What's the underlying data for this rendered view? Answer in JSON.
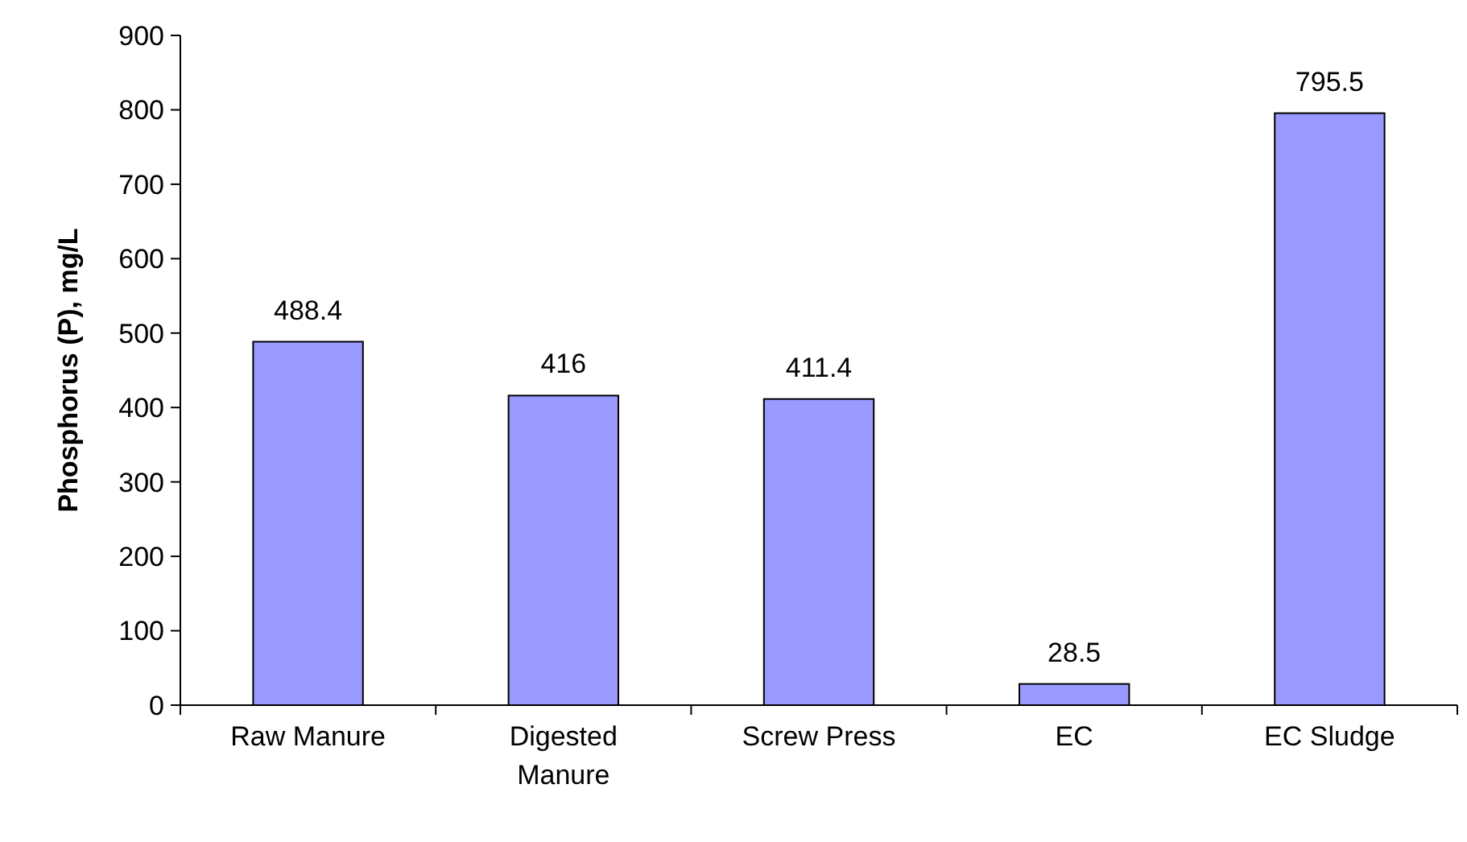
{
  "chart_data": {
    "type": "bar",
    "ylabel": "Phosphorus (P), mg/L",
    "categories": [
      "Raw Manure",
      "Digested Manure",
      "Screw Press",
      "EC",
      "EC Sludge"
    ],
    "values": [
      488.4,
      416,
      411.4,
      28.5,
      795.5
    ],
    "color": "#9999ff",
    "ylim": [
      0,
      900
    ],
    "yticks": [
      0,
      100,
      200,
      300,
      400,
      500,
      600,
      700,
      800,
      900
    ],
    "data_labels": true,
    "grid": false
  }
}
